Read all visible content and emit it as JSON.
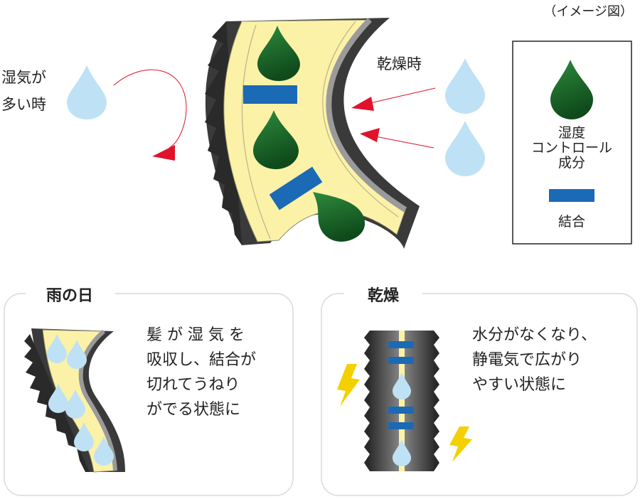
{
  "caption": "（イメージ図）",
  "humid_label": [
    "湿気が",
    "多い時"
  ],
  "dry_label": "乾燥時",
  "legend": {
    "drop_label": [
      "湿度",
      "コントロール",
      "成分"
    ],
    "bar_label": "結合"
  },
  "panels": {
    "rain": {
      "title": "雨の日",
      "body": [
        "髪 が 湿 気 を",
        "吸収し、結合が",
        "切れてうねり",
        "がでる状態に"
      ]
    },
    "dry": {
      "title": "乾燥",
      "body": [
        "水分がなくなり、",
        "静電気で広がり",
        "やすい状態に"
      ]
    }
  },
  "colors": {
    "hair_fill": "#fbf2a8",
    "cuticle": "#3d3d3d",
    "water_drop": "#bfe1f5",
    "control_drop": "#1c6b2b",
    "bond": "#1b6ab5",
    "arrow": "#e0132b",
    "spark": "#f4d000"
  }
}
